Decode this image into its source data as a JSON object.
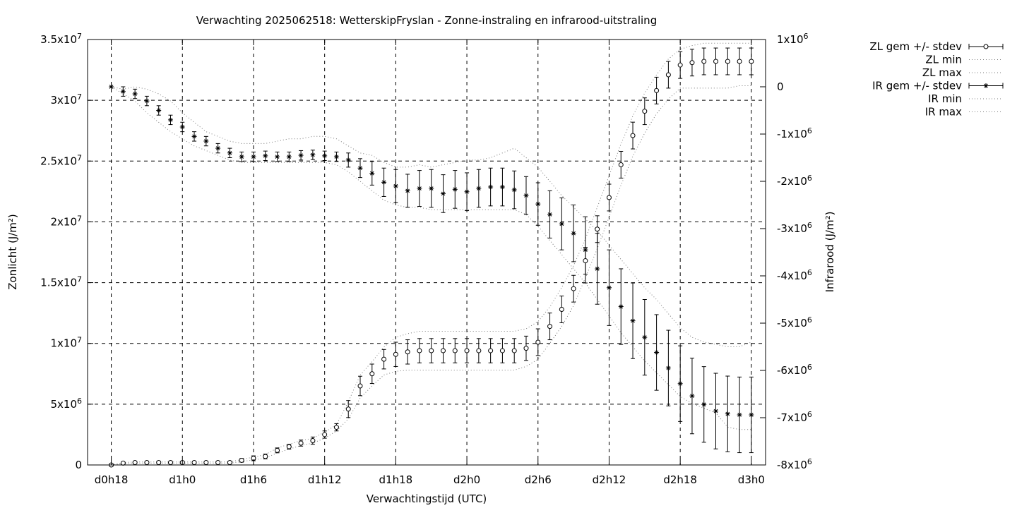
{
  "chart_data": {
    "type": "scatter",
    "title": "Verwachting 2025062518: WetterskipFryslan - Zonne-instraling en infrarood-uitstraling",
    "xlabel": "Verwachtingstijd (UTC)",
    "ylabel_left": "Zonlicht (J/m²)",
    "ylabel_right": "Infrarood (J/m²)",
    "x_unit": "hours since forecast start",
    "xlim": [
      16.0,
      73.2
    ],
    "ylim_left": [
      0,
      35000000
    ],
    "ylim_right": [
      -8000000,
      1000000
    ],
    "grid": true,
    "legend_position": "outside-top-right",
    "x_ticks": [
      {
        "x": 18,
        "label": "d0h18"
      },
      {
        "x": 24,
        "label": "d1h0"
      },
      {
        "x": 30,
        "label": "d1h6"
      },
      {
        "x": 36,
        "label": "d1h12"
      },
      {
        "x": 42,
        "label": "d1h18"
      },
      {
        "x": 48,
        "label": "d2h0"
      },
      {
        "x": 54,
        "label": "d2h6"
      },
      {
        "x": 60,
        "label": "d2h12"
      },
      {
        "x": 66,
        "label": "d2h18"
      },
      {
        "x": 72,
        "label": "d3h0"
      }
    ],
    "y_ticks_left": [
      {
        "v": 0,
        "m": "0",
        "e": ""
      },
      {
        "v": 5000000,
        "m": "5x10",
        "e": "6"
      },
      {
        "v": 10000000,
        "m": "1x10",
        "e": "7"
      },
      {
        "v": 15000000,
        "m": "1.5x10",
        "e": "7"
      },
      {
        "v": 20000000,
        "m": "2x10",
        "e": "7"
      },
      {
        "v": 25000000,
        "m": "2.5x10",
        "e": "7"
      },
      {
        "v": 30000000,
        "m": "3x10",
        "e": "7"
      },
      {
        "v": 35000000,
        "m": "3.5x10",
        "e": "7"
      }
    ],
    "y_ticks_right": [
      {
        "v": 1000000,
        "m": "1x10",
        "e": "6"
      },
      {
        "v": 0,
        "m": "0",
        "e": ""
      },
      {
        "v": -1000000,
        "m": "-1x10",
        "e": "6"
      },
      {
        "v": -2000000,
        "m": "-2x10",
        "e": "6"
      },
      {
        "v": -3000000,
        "m": "-3x10",
        "e": "6"
      },
      {
        "v": -4000000,
        "m": "-4x10",
        "e": "6"
      },
      {
        "v": -5000000,
        "m": "-5x10",
        "e": "6"
      },
      {
        "v": -6000000,
        "m": "-6x10",
        "e": "6"
      },
      {
        "v": -7000000,
        "m": "-7x10",
        "e": "6"
      },
      {
        "v": -8000000,
        "m": "-8x10",
        "e": "6"
      }
    ],
    "x": [
      18,
      19,
      20,
      21,
      22,
      23,
      24,
      25,
      26,
      27,
      28,
      29,
      30,
      31,
      32,
      33,
      34,
      35,
      36,
      37,
      38,
      39,
      40,
      41,
      42,
      43,
      44,
      45,
      46,
      47,
      48,
      49,
      50,
      51,
      52,
      53,
      54,
      55,
      56,
      57,
      58,
      59,
      60,
      61,
      62,
      63,
      64,
      65,
      66,
      67,
      68,
      69,
      70,
      71,
      72
    ],
    "series": [
      {
        "name": "ZL gem +/- stdev",
        "axis": "left",
        "marker": "circle",
        "mean": [
          0,
          150000,
          200000,
          200000,
          200000,
          200000,
          200000,
          200000,
          200000,
          200000,
          200000,
          380000,
          550000,
          700000,
          1200000,
          1500000,
          1800000,
          2000000,
          2500000,
          3100000,
          4600000,
          6500000,
          7500000,
          8700000,
          9100000,
          9300000,
          9400000,
          9400000,
          9400000,
          9400000,
          9400000,
          9400000,
          9400000,
          9400000,
          9400000,
          9600000,
          10100000,
          11400000,
          12800000,
          14500000,
          16800000,
          19400000,
          22000000,
          24700000,
          27100000,
          29100000,
          30800000,
          32100000,
          32900000,
          33100000,
          33200000,
          33200000,
          33200000,
          33200000,
          33200000
        ],
        "stdev": [
          100000,
          100000,
          100000,
          100000,
          100000,
          100000,
          100000,
          100000,
          100000,
          100000,
          100000,
          150000,
          200000,
          200000,
          200000,
          200000,
          250000,
          300000,
          300000,
          300000,
          700000,
          800000,
          800000,
          800000,
          1000000,
          1000000,
          1000000,
          1000000,
          1000000,
          1000000,
          1000000,
          1000000,
          1000000,
          1000000,
          1000000,
          1000000,
          1100000,
          1100000,
          1100000,
          1100000,
          1100000,
          1100000,
          1100000,
          1100000,
          1100000,
          1100000,
          1100000,
          1100000,
          1100000,
          1100000,
          1100000,
          1100000,
          1100000,
          1100000,
          1100000
        ]
      },
      {
        "name": "ZL min",
        "axis": "left",
        "line": "dotted",
        "values": [
          0,
          100000,
          150000,
          150000,
          150000,
          150000,
          150000,
          150000,
          150000,
          150000,
          150000,
          280000,
          420000,
          560000,
          1000000,
          1300000,
          1600000,
          1800000,
          2200000,
          2800000,
          3800000,
          5500000,
          6500000,
          7400000,
          7700000,
          7800000,
          7800000,
          7800000,
          7800000,
          7800000,
          7800000,
          7800000,
          7800000,
          7800000,
          7800000,
          8100000,
          8700000,
          10000000,
          11400000,
          13100000,
          15400000,
          17800000,
          20400000,
          23000000,
          25400000,
          27300000,
          28900000,
          30100000,
          31000000,
          31000000,
          31000000,
          31000000,
          31000000,
          31200000,
          31200000
        ]
      },
      {
        "name": "ZL max",
        "axis": "left",
        "line": "dotted",
        "values": [
          0,
          200000,
          250000,
          250000,
          250000,
          250000,
          250000,
          250000,
          250000,
          250000,
          250000,
          450000,
          650000,
          850000,
          1400000,
          1700000,
          2000000,
          2200000,
          2700000,
          3300000,
          5200000,
          7400000,
          8500000,
          9700000,
          10500000,
          10800000,
          11000000,
          11000000,
          11000000,
          11000000,
          11000000,
          11000000,
          11000000,
          11000000,
          11000000,
          11200000,
          11800000,
          13000000,
          14600000,
          16400000,
          18600000,
          21200000,
          23800000,
          26400000,
          28700000,
          30600000,
          32100000,
          33400000,
          34200000,
          34500000,
          34700000,
          34700000,
          34700000,
          34700000,
          34700000
        ]
      },
      {
        "name": "IR gem +/- stdev",
        "axis": "right",
        "marker": "star",
        "mean": [
          0,
          -100000,
          -150000,
          -300000,
          -500000,
          -700000,
          -850000,
          -1050000,
          -1150000,
          -1300000,
          -1400000,
          -1480000,
          -1480000,
          -1460000,
          -1480000,
          -1480000,
          -1450000,
          -1440000,
          -1460000,
          -1480000,
          -1550000,
          -1720000,
          -1830000,
          -2020000,
          -2100000,
          -2200000,
          -2150000,
          -2150000,
          -2260000,
          -2170000,
          -2220000,
          -2150000,
          -2120000,
          -2120000,
          -2180000,
          -2300000,
          -2480000,
          -2700000,
          -2900000,
          -3100000,
          -3450000,
          -3850000,
          -4250000,
          -4650000,
          -4950000,
          -5300000,
          -5620000,
          -5950000,
          -6280000,
          -6540000,
          -6720000,
          -6860000,
          -6920000,
          -6940000,
          -6940000
        ],
        "stdev": [
          0,
          100000,
          100000,
          100000,
          100000,
          100000,
          100000,
          100000,
          100000,
          100000,
          100000,
          100000,
          100000,
          100000,
          100000,
          100000,
          100000,
          100000,
          100000,
          100000,
          150000,
          200000,
          250000,
          300000,
          350000,
          350000,
          380000,
          400000,
          400000,
          400000,
          400000,
          400000,
          400000,
          400000,
          400000,
          400000,
          450000,
          500000,
          550000,
          600000,
          700000,
          750000,
          800000,
          800000,
          800000,
          800000,
          800000,
          800000,
          800000,
          800000,
          800000,
          800000,
          800000,
          800000,
          800000
        ]
      },
      {
        "name": "IR min",
        "axis": "right",
        "line": "dotted",
        "values": [
          0,
          -150000,
          -300000,
          -550000,
          -750000,
          -950000,
          -1100000,
          -1250000,
          -1350000,
          -1450000,
          -1550000,
          -1600000,
          -1600000,
          -1600000,
          -1600000,
          -1600000,
          -1600000,
          -1600000,
          -1600000,
          -1650000,
          -1800000,
          -2000000,
          -2200000,
          -2400000,
          -2500000,
          -2550000,
          -2550000,
          -2600000,
          -2600000,
          -2600000,
          -2600000,
          -2600000,
          -2600000,
          -2600000,
          -2600000,
          -2700000,
          -2950000,
          -3250000,
          -3550000,
          -3850000,
          -4150000,
          -4500000,
          -4850000,
          -5200000,
          -5500000,
          -5800000,
          -6050000,
          -6300000,
          -6550000,
          -6700000,
          -6800000,
          -6900000,
          -7200000,
          -7250000,
          -7250000
        ]
      },
      {
        "name": "IR max",
        "axis": "right",
        "line": "dotted",
        "values": [
          0,
          -50000,
          0,
          -50000,
          -150000,
          -300000,
          -550000,
          -750000,
          -950000,
          -1050000,
          -1150000,
          -1200000,
          -1200000,
          -1200000,
          -1150000,
          -1100000,
          -1100000,
          -1050000,
          -1050000,
          -1100000,
          -1250000,
          -1400000,
          -1450000,
          -1600000,
          -1700000,
          -1700000,
          -1650000,
          -1700000,
          -1650000,
          -1600000,
          -1550000,
          -1550000,
          -1500000,
          -1400000,
          -1300000,
          -1500000,
          -1700000,
          -2000000,
          -2300000,
          -2550000,
          -2800000,
          -3050000,
          -3350000,
          -3650000,
          -3950000,
          -4250000,
          -4500000,
          -4800000,
          -5100000,
          -5300000,
          -5400000,
          -5450000,
          -5500000,
          -5500000,
          -5400000
        ]
      }
    ]
  }
}
